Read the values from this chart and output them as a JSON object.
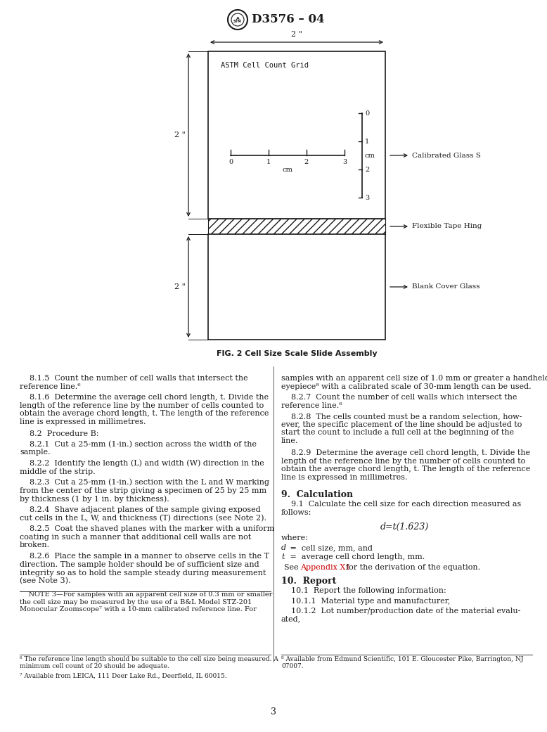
{
  "title": "D3576 – 04",
  "fig_caption": "FIG. 2 Cell Size Scale Slide Assembly",
  "label_calibrated": "Calibrated Glass S",
  "label_flexible": "Flexible Tape Hing",
  "label_blank": "Blank Cover Glass",
  "label_grid": "ASTM Cell Count Grid",
  "page_number": "3",
  "background_color": "#ffffff",
  "text_color": "#1a1a1a",
  "red_color": "#cc0000",
  "footnote6": "⁶ The reference line length should be suitable to the cell size being measured. A\nminimum cell count of 20 should be adequate.",
  "footnote7": "⁷ Available from LEICA, 111 Deer Lake Rd., Deerfield, IL 60015.",
  "footnote8": "⁸ Available from Edmund Scientific, 101 E. Gloucester Pike, Barrington, NJ\n07007."
}
